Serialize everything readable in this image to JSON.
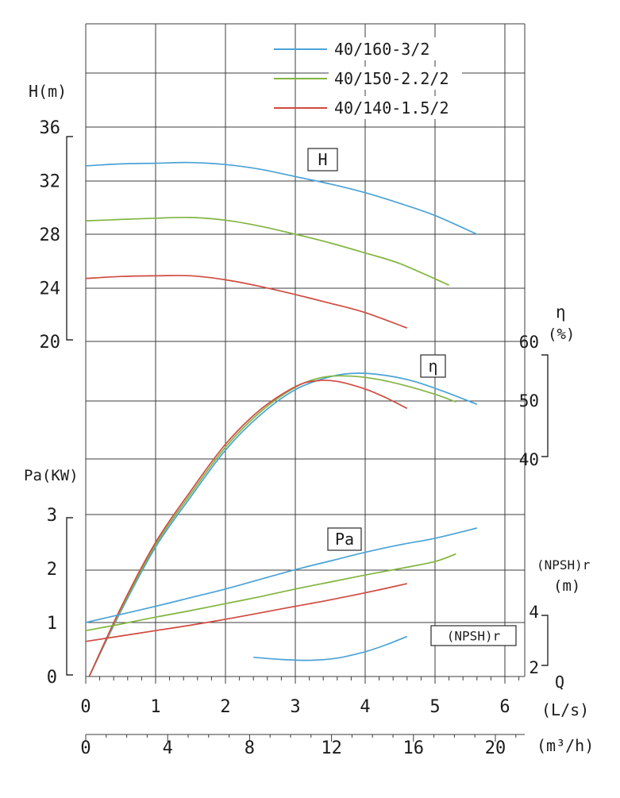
{
  "chart_data": {
    "type": "line",
    "title": "",
    "models": [
      "40/160-3/2",
      "40/150-2.2/2",
      "40/140-1.5/2"
    ],
    "colors": {
      "40/160-3/2": "#4aa3d6",
      "40/150-2.2/2": "#82b541",
      "40/140-1.5/2": "#d04a41"
    },
    "grid_color": "#3c3c3c",
    "x_axis": {
      "primary": {
        "unit": "(L/s)",
        "ticks": [
          0,
          1,
          2,
          3,
          4,
          5,
          6
        ],
        "range": [
          0,
          6.3
        ]
      },
      "secondary": {
        "prefix": "Q",
        "unit": "(m³/h)",
        "ticks": [
          0,
          4,
          8,
          12,
          16,
          20
        ],
        "range": [
          0,
          21.4
        ]
      }
    },
    "y_axes": {
      "H": {
        "title": "H(m)",
        "ticks": [
          36,
          32,
          28,
          24,
          20
        ],
        "range": [
          20,
          36
        ],
        "side": "left"
      },
      "eta": {
        "title": "η",
        "unit": "(%)",
        "ticks": [
          60,
          50,
          40
        ],
        "range": [
          40,
          60
        ],
        "side": "right"
      },
      "Pa": {
        "title": "Pa(KW)",
        "ticks": [
          3,
          2,
          1,
          0
        ],
        "range": [
          0,
          3
        ],
        "side": "left"
      },
      "NPSHr": {
        "title": "(NPSH)r",
        "unit": "(m)",
        "ticks": [
          4,
          2
        ],
        "range": [
          2,
          4
        ],
        "side": "right"
      }
    },
    "curve_groups": [
      {
        "quantity": "H",
        "label": "H",
        "curves": [
          {
            "model": "40/160-3/2",
            "points": [
              [
                0,
                33.1
              ],
              [
                0.5,
                33.25
              ],
              [
                1,
                33.3
              ],
              [
                1.5,
                33.35
              ],
              [
                2,
                33.2
              ],
              [
                2.5,
                32.85
              ],
              [
                3,
                32.3
              ],
              [
                3.5,
                31.75
              ],
              [
                4,
                31.1
              ],
              [
                4.5,
                30.3
              ],
              [
                5,
                29.4
              ],
              [
                5.6,
                28.0
              ]
            ]
          },
          {
            "model": "40/150-2.2/2",
            "points": [
              [
                0,
                29.0
              ],
              [
                0.5,
                29.1
              ],
              [
                1,
                29.2
              ],
              [
                1.5,
                29.25
              ],
              [
                2,
                29.05
              ],
              [
                2.5,
                28.6
              ],
              [
                3,
                28.0
              ],
              [
                3.5,
                27.35
              ],
              [
                4,
                26.6
              ],
              [
                4.5,
                25.8
              ],
              [
                5.2,
                24.2
              ]
            ]
          },
          {
            "model": "40/140-1.5/2",
            "points": [
              [
                0,
                24.7
              ],
              [
                0.5,
                24.85
              ],
              [
                1,
                24.9
              ],
              [
                1.5,
                24.9
              ],
              [
                2,
                24.6
              ],
              [
                2.5,
                24.1
              ],
              [
                3,
                23.5
              ],
              [
                3.5,
                22.85
              ],
              [
                4,
                22.15
              ],
              [
                4.6,
                21.0
              ]
            ]
          }
        ]
      },
      {
        "quantity": "eta",
        "label": "η",
        "curves": [
          {
            "model": "40/160-3/2",
            "points": [
              [
                0.05,
                3
              ],
              [
                0.5,
                14
              ],
              [
                1,
                25
              ],
              [
                1.5,
                33.5
              ],
              [
                2,
                41.5
              ],
              [
                2.5,
                47.5
              ],
              [
                3,
                51.8
              ],
              [
                3.5,
                54
              ],
              [
                3.9,
                54.6
              ],
              [
                4.3,
                54.2
              ],
              [
                4.7,
                53.2
              ],
              [
                5.1,
                51.6
              ],
              [
                5.6,
                49.3
              ]
            ]
          },
          {
            "model": "40/150-2.2/2",
            "points": [
              [
                0.05,
                3
              ],
              [
                0.5,
                14.3
              ],
              [
                1,
                25.4
              ],
              [
                1.5,
                34
              ],
              [
                2,
                42
              ],
              [
                2.5,
                48
              ],
              [
                3,
                52.2
              ],
              [
                3.4,
                53.9
              ],
              [
                3.8,
                54.1
              ],
              [
                4.2,
                53.5
              ],
              [
                4.6,
                52.4
              ],
              [
                5,
                51
              ],
              [
                5.3,
                49.7
              ]
            ]
          },
          {
            "model": "40/140-1.5/2",
            "points": [
              [
                0.05,
                3
              ],
              [
                0.5,
                14.6
              ],
              [
                1,
                25.8
              ],
              [
                1.5,
                34.5
              ],
              [
                2,
                42.5
              ],
              [
                2.5,
                48.4
              ],
              [
                3,
                52.3
              ],
              [
                3.3,
                53.3
              ],
              [
                3.6,
                53.2
              ],
              [
                4,
                51.9
              ],
              [
                4.3,
                50.4
              ],
              [
                4.6,
                48.6
              ]
            ]
          }
        ]
      },
      {
        "quantity": "Pa",
        "label": "Pa",
        "curves": [
          {
            "model": "40/160-3/2",
            "points": [
              [
                0,
                1.0
              ],
              [
                0.5,
                1.15
              ],
              [
                1,
                1.3
              ],
              [
                1.5,
                1.46
              ],
              [
                2,
                1.62
              ],
              [
                2.5,
                1.8
              ],
              [
                3,
                1.98
              ],
              [
                3.5,
                2.14
              ],
              [
                4,
                2.3
              ],
              [
                4.5,
                2.44
              ],
              [
                5,
                2.56
              ],
              [
                5.6,
                2.75
              ]
            ]
          },
          {
            "model": "40/150-2.2/2",
            "points": [
              [
                0,
                0.85
              ],
              [
                0.5,
                0.97
              ],
              [
                1,
                1.1
              ],
              [
                1.5,
                1.22
              ],
              [
                2,
                1.35
              ],
              [
                2.5,
                1.48
              ],
              [
                3,
                1.62
              ],
              [
                3.5,
                1.75
              ],
              [
                4,
                1.88
              ],
              [
                4.5,
                2.0
              ],
              [
                5,
                2.13
              ],
              [
                5.3,
                2.27
              ]
            ]
          },
          {
            "model": "40/140-1.5/2",
            "points": [
              [
                0,
                0.65
              ],
              [
                0.5,
                0.75
              ],
              [
                1,
                0.85
              ],
              [
                1.5,
                0.95
              ],
              [
                2,
                1.06
              ],
              [
                2.5,
                1.18
              ],
              [
                3,
                1.3
              ],
              [
                3.5,
                1.42
              ],
              [
                4,
                1.55
              ],
              [
                4.6,
                1.72
              ]
            ]
          }
        ]
      },
      {
        "quantity": "NPSHr",
        "label": "(NPSH)r",
        "curves": [
          {
            "model": "40/160-3/2",
            "points": [
              [
                2.4,
                2.35
              ],
              [
                2.8,
                2.27
              ],
              [
                3.2,
                2.24
              ],
              [
                3.6,
                2.32
              ],
              [
                4.0,
                2.55
              ],
              [
                4.3,
                2.8
              ],
              [
                4.6,
                3.1
              ]
            ]
          }
        ]
      }
    ]
  }
}
